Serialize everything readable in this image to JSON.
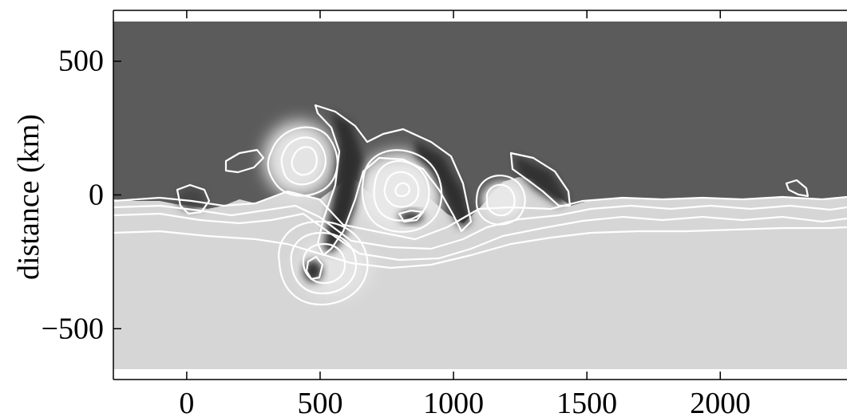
{
  "chart_data": {
    "type": "heatmap",
    "title": "",
    "xlabel": "",
    "ylabel": "distance (km)",
    "xlim": [
      -275,
      2475
    ],
    "ylim": [
      -690,
      690
    ],
    "x_ticks": [
      0,
      500,
      1000,
      1500,
      2000
    ],
    "x_tick_labels": [
      "0",
      "500",
      "1000",
      "1500",
      "2000"
    ],
    "y_ticks": [
      500,
      0,
      -500
    ],
    "y_tick_labels": [
      "500",
      "0",
      "−500"
    ],
    "colormap": "grayscale",
    "colors": {
      "upper_field": "#5b5b5b",
      "lower_field": "#d6d6d6",
      "dark_feature": "#2f2f2f",
      "light_feature": "#f2f2f2",
      "contours": "#ffffff"
    },
    "grid": false,
    "legend": "none",
    "description": "Gray-scale field with white contour lines showing rolled-up vortices around y=0 between x≈300 and x≈1450."
  }
}
